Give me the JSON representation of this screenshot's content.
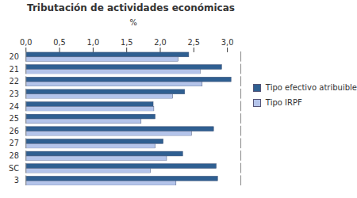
{
  "chart_data": {
    "type": "bar",
    "orientation": "horizontal",
    "title": "Tributación de actividades económicas",
    "x_label": "%",
    "categories": [
      "20",
      "21",
      "22",
      "23",
      "24",
      "25",
      "26",
      "27",
      "28",
      "SC",
      "3"
    ],
    "series": [
      {
        "name": "Tipo efectivo atribuible",
        "color": "#2f5f91",
        "values": [
          2.43,
          2.92,
          3.06,
          2.37,
          1.9,
          1.93,
          2.8,
          2.05,
          2.34,
          2.84,
          2.86
        ]
      },
      {
        "name": "Tipo IRPF",
        "color": "#b4c4ea",
        "values": [
          2.27,
          2.6,
          2.63,
          2.19,
          1.91,
          1.72,
          2.47,
          1.93,
          2.1,
          1.86,
          2.24
        ]
      }
    ],
    "xlim": [
      0,
      3.2
    ],
    "xticks": [
      {
        "value": 0,
        "label": "0,0"
      },
      {
        "value": 0.5,
        "label": "0,5"
      },
      {
        "value": 1,
        "label": "1,0"
      },
      {
        "value": 1.5,
        "label": "1,5"
      },
      {
        "value": 2,
        "label": "2,0"
      },
      {
        "value": 2.5,
        "label": "2,5"
      },
      {
        "value": 3,
        "label": "3,0"
      }
    ],
    "grid": false,
    "legend": "right"
  }
}
